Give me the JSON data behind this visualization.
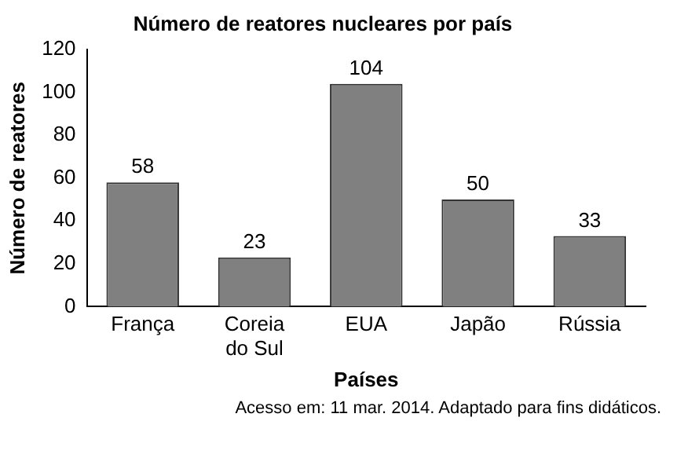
{
  "chart_data": {
    "type": "bar",
    "title": "Número de reatores nucleares por país",
    "xlabel": "Países",
    "ylabel": "Número de reatores",
    "categories": [
      "França",
      "Coreia do Sul",
      "EUA",
      "Japão",
      "Rússia"
    ],
    "values": [
      58,
      23,
      104,
      50,
      33
    ],
    "color": "#808080",
    "ylim": [
      0,
      120
    ],
    "yticks": [
      0,
      20,
      40,
      60,
      80,
      100,
      120
    ],
    "grid": false,
    "legend": false,
    "data_labels": true,
    "annotations": [
      "Acesso em: 11 mar. 2014. Adaptado para fins didáticos."
    ]
  }
}
